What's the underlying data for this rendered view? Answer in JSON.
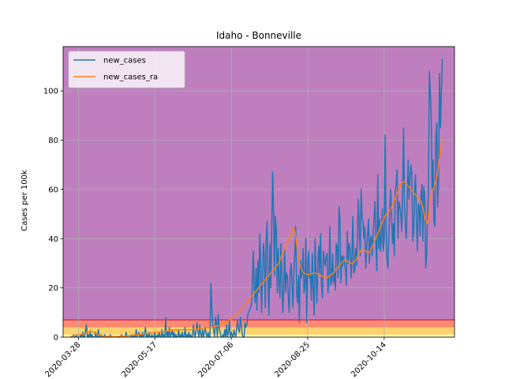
{
  "chart_data": {
    "type": "line",
    "title": "Idaho - Bonneville",
    "xlabel": "",
    "ylabel": "Cases per 100k",
    "x_start": "2020-03-23",
    "x_end": "2020-11-21",
    "xlim": [
      "2020-03-18",
      "2020-11-29"
    ],
    "ylim": [
      0,
      118
    ],
    "yticks": [
      0,
      20,
      40,
      60,
      80,
      100
    ],
    "xticks": [
      "2020-03-28",
      "2020-05-17",
      "2020-07-06",
      "2020-08-25",
      "2020-10-14"
    ],
    "grid": true,
    "legend_position": "top-left",
    "background_bands": [
      {
        "from": 0,
        "to": 1,
        "color": "#fff8b0"
      },
      {
        "from": 1,
        "to": 4,
        "color": "#ffd36b"
      },
      {
        "from": 4,
        "to": 7,
        "color": "#ff8a72"
      },
      {
        "from": 7,
        "to": 118,
        "color": "#bf7fbf"
      }
    ],
    "band_line": {
      "y": 7,
      "color": "#d03050"
    },
    "series": [
      {
        "name": "new_cases",
        "color": "#1f77b4",
        "values": [
          0,
          0,
          0,
          1,
          0,
          0,
          1,
          0,
          0,
          0,
          0,
          1,
          0,
          2,
          0,
          0,
          3,
          5,
          0,
          1,
          0,
          2,
          0,
          1,
          0,
          0,
          0,
          2,
          0,
          0,
          3,
          0,
          0,
          1,
          0,
          0,
          0,
          1,
          0,
          0,
          0,
          0,
          0,
          1,
          0,
          0,
          0,
          0,
          0,
          0,
          0,
          0,
          0,
          0,
          0,
          1,
          0,
          0,
          0,
          0,
          2,
          0,
          0,
          0,
          0,
          0,
          1,
          0,
          0,
          1,
          0,
          3,
          0,
          1,
          2,
          0,
          1,
          0,
          2,
          0,
          1,
          4,
          0,
          1,
          0,
          2,
          0,
          0,
          1,
          0,
          0,
          2,
          0,
          0,
          1,
          0,
          2,
          0,
          0,
          3,
          0,
          1,
          0,
          8,
          0,
          2,
          0,
          4,
          0,
          1,
          3,
          0,
          2,
          0,
          1,
          0,
          0,
          3,
          0,
          1,
          0,
          2,
          0,
          0,
          4,
          0,
          1,
          0,
          2,
          0,
          1,
          0,
          0,
          5,
          1,
          0,
          3,
          6,
          2,
          0,
          5,
          1,
          0,
          3,
          0,
          2,
          4,
          1,
          0,
          2,
          0,
          0,
          22,
          12,
          5,
          3,
          0,
          8,
          6,
          0,
          9,
          4,
          2,
          0,
          0,
          1,
          0,
          3,
          0,
          5,
          0,
          2,
          7,
          0,
          2,
          1,
          0,
          3,
          1,
          0,
          4,
          7,
          3,
          2,
          8,
          5,
          1,
          0,
          0,
          6,
          4,
          5,
          9,
          10,
          11,
          12,
          13,
          22,
          35,
          20,
          14,
          28,
          11,
          31,
          18,
          42,
          30,
          10,
          25,
          38,
          33,
          12,
          40,
          47,
          21,
          9,
          38,
          20,
          45,
          67,
          50,
          25,
          49,
          44,
          18,
          36,
          22,
          16,
          38,
          25,
          10,
          20,
          36,
          18,
          26,
          25,
          16,
          10,
          26,
          30,
          22,
          12,
          27,
          34,
          45,
          18,
          14,
          25,
          6,
          31,
          24,
          26,
          36,
          18,
          21,
          40,
          6,
          29,
          35,
          24,
          26,
          15,
          34,
          20,
          9,
          40,
          25,
          14,
          30,
          37,
          26,
          42,
          21,
          16,
          35,
          31,
          29,
          33,
          34,
          18,
          24,
          45,
          21,
          23,
          34,
          22,
          27,
          19,
          38,
          37,
          24,
          53,
          48,
          22,
          33,
          29,
          33,
          30,
          27,
          21,
          43,
          30,
          38,
          36,
          24,
          33,
          49,
          26,
          27,
          36,
          29,
          41,
          56,
          44,
          33,
          60,
          49,
          46,
          40,
          45,
          28,
          36,
          42,
          48,
          30,
          40,
          41,
          33,
          42,
          48,
          55,
          39,
          27,
          66,
          36,
          48,
          35,
          40,
          52,
          35,
          40,
          82,
          44,
          32,
          28,
          40,
          51,
          60,
          50,
          38,
          46,
          33,
          60,
          62,
          68,
          40,
          55,
          53,
          50,
          43,
          60,
          85,
          54,
          45,
          40,
          55,
          72,
          56,
          65,
          70,
          66,
          39,
          43,
          60,
          66,
          47,
          35,
          54,
          53,
          41,
          58,
          62,
          39,
          61,
          57,
          28,
          33,
          50,
          60,
          108,
          100,
          90,
          60,
          72,
          47,
          45,
          81,
          87,
          53,
          64,
          107,
          85,
          99,
          113
        ]
      },
      {
        "name": "new_cases_ra",
        "color": "#ff7f0e",
        "values": [
          0.4,
          0.4,
          0.5,
          0.6,
          0.6,
          0.7,
          0.8,
          0.8,
          0.9,
          1,
          1.1,
          1.2,
          1.3,
          1.4,
          1.5,
          1.6,
          1.8,
          2,
          2.2,
          2.4,
          2.5,
          2.3,
          2.1,
          1.9,
          1.7,
          1.5,
          1.3,
          1.1,
          0.9,
          0.8,
          0.7,
          0.6,
          0.5,
          0.5,
          0.4,
          0.4,
          0.3,
          0.3,
          0.3,
          0.3,
          0.3,
          0.2,
          0.2,
          0.2,
          0.2,
          0.2,
          0.2,
          0.3,
          0.3,
          0.3,
          0.3,
          0.3,
          0.4,
          0.4,
          0.4,
          0.5,
          0.5,
          0.6,
          0.6,
          0.7,
          0.7,
          0.8,
          0.8,
          0.9,
          0.9,
          1,
          1,
          1.1,
          1.1,
          1.2,
          1.2,
          1.3,
          1.3,
          1.4,
          1.4,
          1.5,
          1.5,
          1.6,
          1.6,
          1.7,
          1.7,
          1.8,
          1.8,
          1.9,
          1.9,
          2,
          2,
          2.1,
          2.1,
          2.2,
          2.2,
          2.3,
          2.3,
          2.4,
          2.4,
          2.5,
          2.5,
          2.6,
          2.6,
          2.7,
          2.7,
          2.8,
          2.8,
          2.9,
          2.9,
          3,
          3,
          3,
          3,
          3,
          3,
          3,
          3,
          3,
          3,
          3,
          3,
          3,
          3.1,
          3.1,
          3.1,
          3.2,
          3.2,
          3.2,
          3.3,
          3.3,
          3.3,
          3.4,
          3.4,
          3.5,
          3.5,
          3.6,
          3.6,
          3.7,
          3.7,
          3.8,
          3.8,
          3.9,
          3.9,
          4,
          4.1,
          4.2,
          4.3,
          4.4,
          4.5,
          4.6,
          4.7,
          4.8,
          5,
          5.2,
          5.4,
          5.6,
          5.8,
          6,
          6.2,
          6.5,
          6.8,
          7.1,
          7.4,
          7.7,
          8,
          8.3,
          8.6,
          9,
          9.4,
          9.8,
          10.2,
          10.6,
          11,
          11.5,
          12,
          12.5,
          13,
          13.5,
          14,
          14.5,
          15,
          15.5,
          16,
          16.5,
          17,
          17.5,
          18,
          18.5,
          19,
          19.5,
          20,
          20.5,
          21,
          21.5,
          22,
          22.5,
          23,
          23.5,
          24,
          24.5,
          25,
          25.5,
          26,
          26.5,
          27,
          27.5,
          28,
          28.5,
          29,
          29.5,
          30,
          31,
          32,
          33,
          34,
          35,
          36,
          37,
          38,
          39,
          40,
          41,
          42,
          43,
          44,
          44,
          43,
          40,
          37,
          34,
          31,
          29,
          28,
          27,
          26.5,
          26,
          25.8,
          25.6,
          25.5,
          25.5,
          25.5,
          25.6,
          25.7,
          25.8,
          25.9,
          26,
          26,
          25.9,
          25.8,
          25.6,
          25.4,
          25.2,
          25,
          24.8,
          24.6,
          24.4,
          24.2,
          24,
          24.2,
          24.5,
          24.8,
          25,
          25.3,
          25.6,
          26,
          26.5,
          27,
          27.5,
          28,
          28.5,
          29,
          29.5,
          30,
          30.5,
          31,
          31.3,
          31.5,
          31.3,
          31,
          30.7,
          30.4,
          30.2,
          30,
          30,
          30.3,
          30.7,
          31.2,
          31.8,
          32.5,
          33.3,
          34.2,
          35,
          35.4,
          35.6,
          35.6,
          35.4,
          35,
          34.6,
          34.2,
          34.2,
          34.6,
          35.2,
          36,
          37,
          38,
          39,
          40,
          41,
          42,
          43,
          44,
          45,
          46,
          47,
          48,
          49,
          49.5,
          50,
          50.5,
          51,
          51.5,
          52,
          53,
          54,
          55,
          56,
          57,
          58,
          59,
          60,
          61,
          62,
          62.5,
          63,
          63.2,
          63,
          62.5,
          62,
          61.5,
          61,
          60.5,
          60,
          59.5,
          59,
          58.5,
          58,
          57.5,
          57,
          56.5,
          56,
          55.5,
          55,
          54,
          52,
          50,
          48,
          47,
          46,
          48,
          52,
          56,
          58,
          59,
          60,
          61,
          62,
          64,
          66,
          69,
          72,
          75,
          78,
          80
        ]
      }
    ]
  }
}
